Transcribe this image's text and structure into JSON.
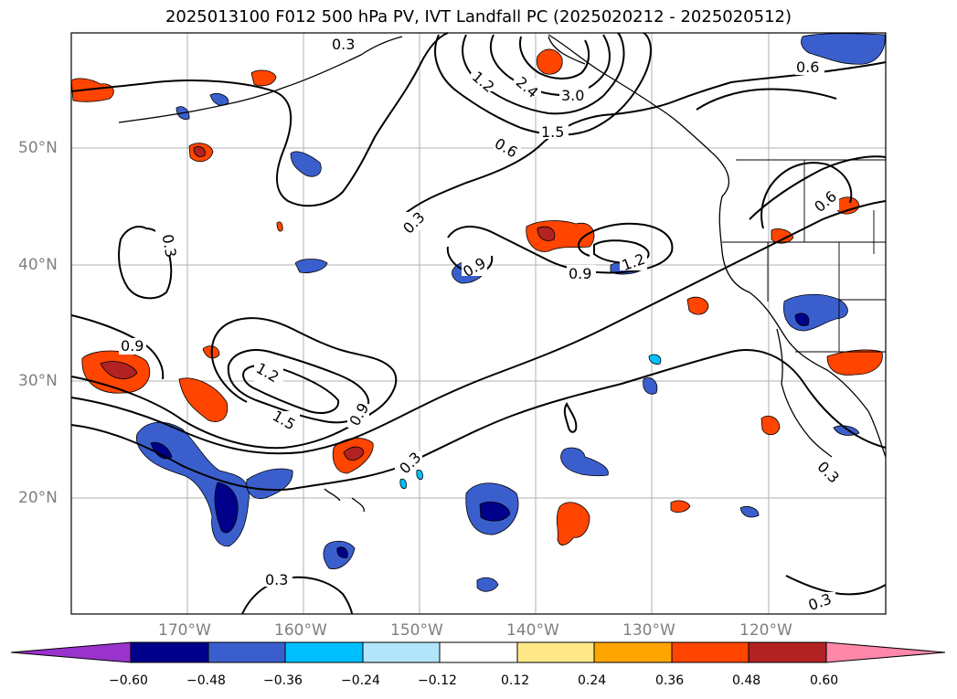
{
  "title": "2025013100 F012 500 hPa PV, IVT Landfall PC (2025020212 - 2025020512)",
  "lat_labels": [
    "50°N",
    "40°N",
    "30°N",
    "20°N"
  ],
  "lon_labels": [
    "170°W",
    "160°W",
    "150°W",
    "140°W",
    "130°W",
    "120°W"
  ],
  "contour_labels": [
    "0.3",
    "0.3",
    "0.3",
    "0.3",
    "0.3",
    "0.3",
    "0.3",
    "0.6",
    "0.6",
    "0.6",
    "0.9",
    "0.9",
    "0.9",
    "0.9",
    "1.2",
    "1.2",
    "1.2",
    "1.5",
    "1.5",
    "2.4",
    "3.0"
  ],
  "colorbar": {
    "ticks": [
      "−0.60",
      "−0.48",
      "−0.36",
      "−0.24",
      "−0.12",
      "0.12",
      "0.24",
      "0.36",
      "0.48",
      "0.60"
    ],
    "colors": [
      "#9a32cd",
      "#00008b",
      "#3a5fcd",
      "#00bfff",
      "#b2e5fa",
      "#ffffff",
      "#ffe88a",
      "#ffa500",
      "#ff4500",
      "#b22222",
      "#ff88aa"
    ]
  }
}
